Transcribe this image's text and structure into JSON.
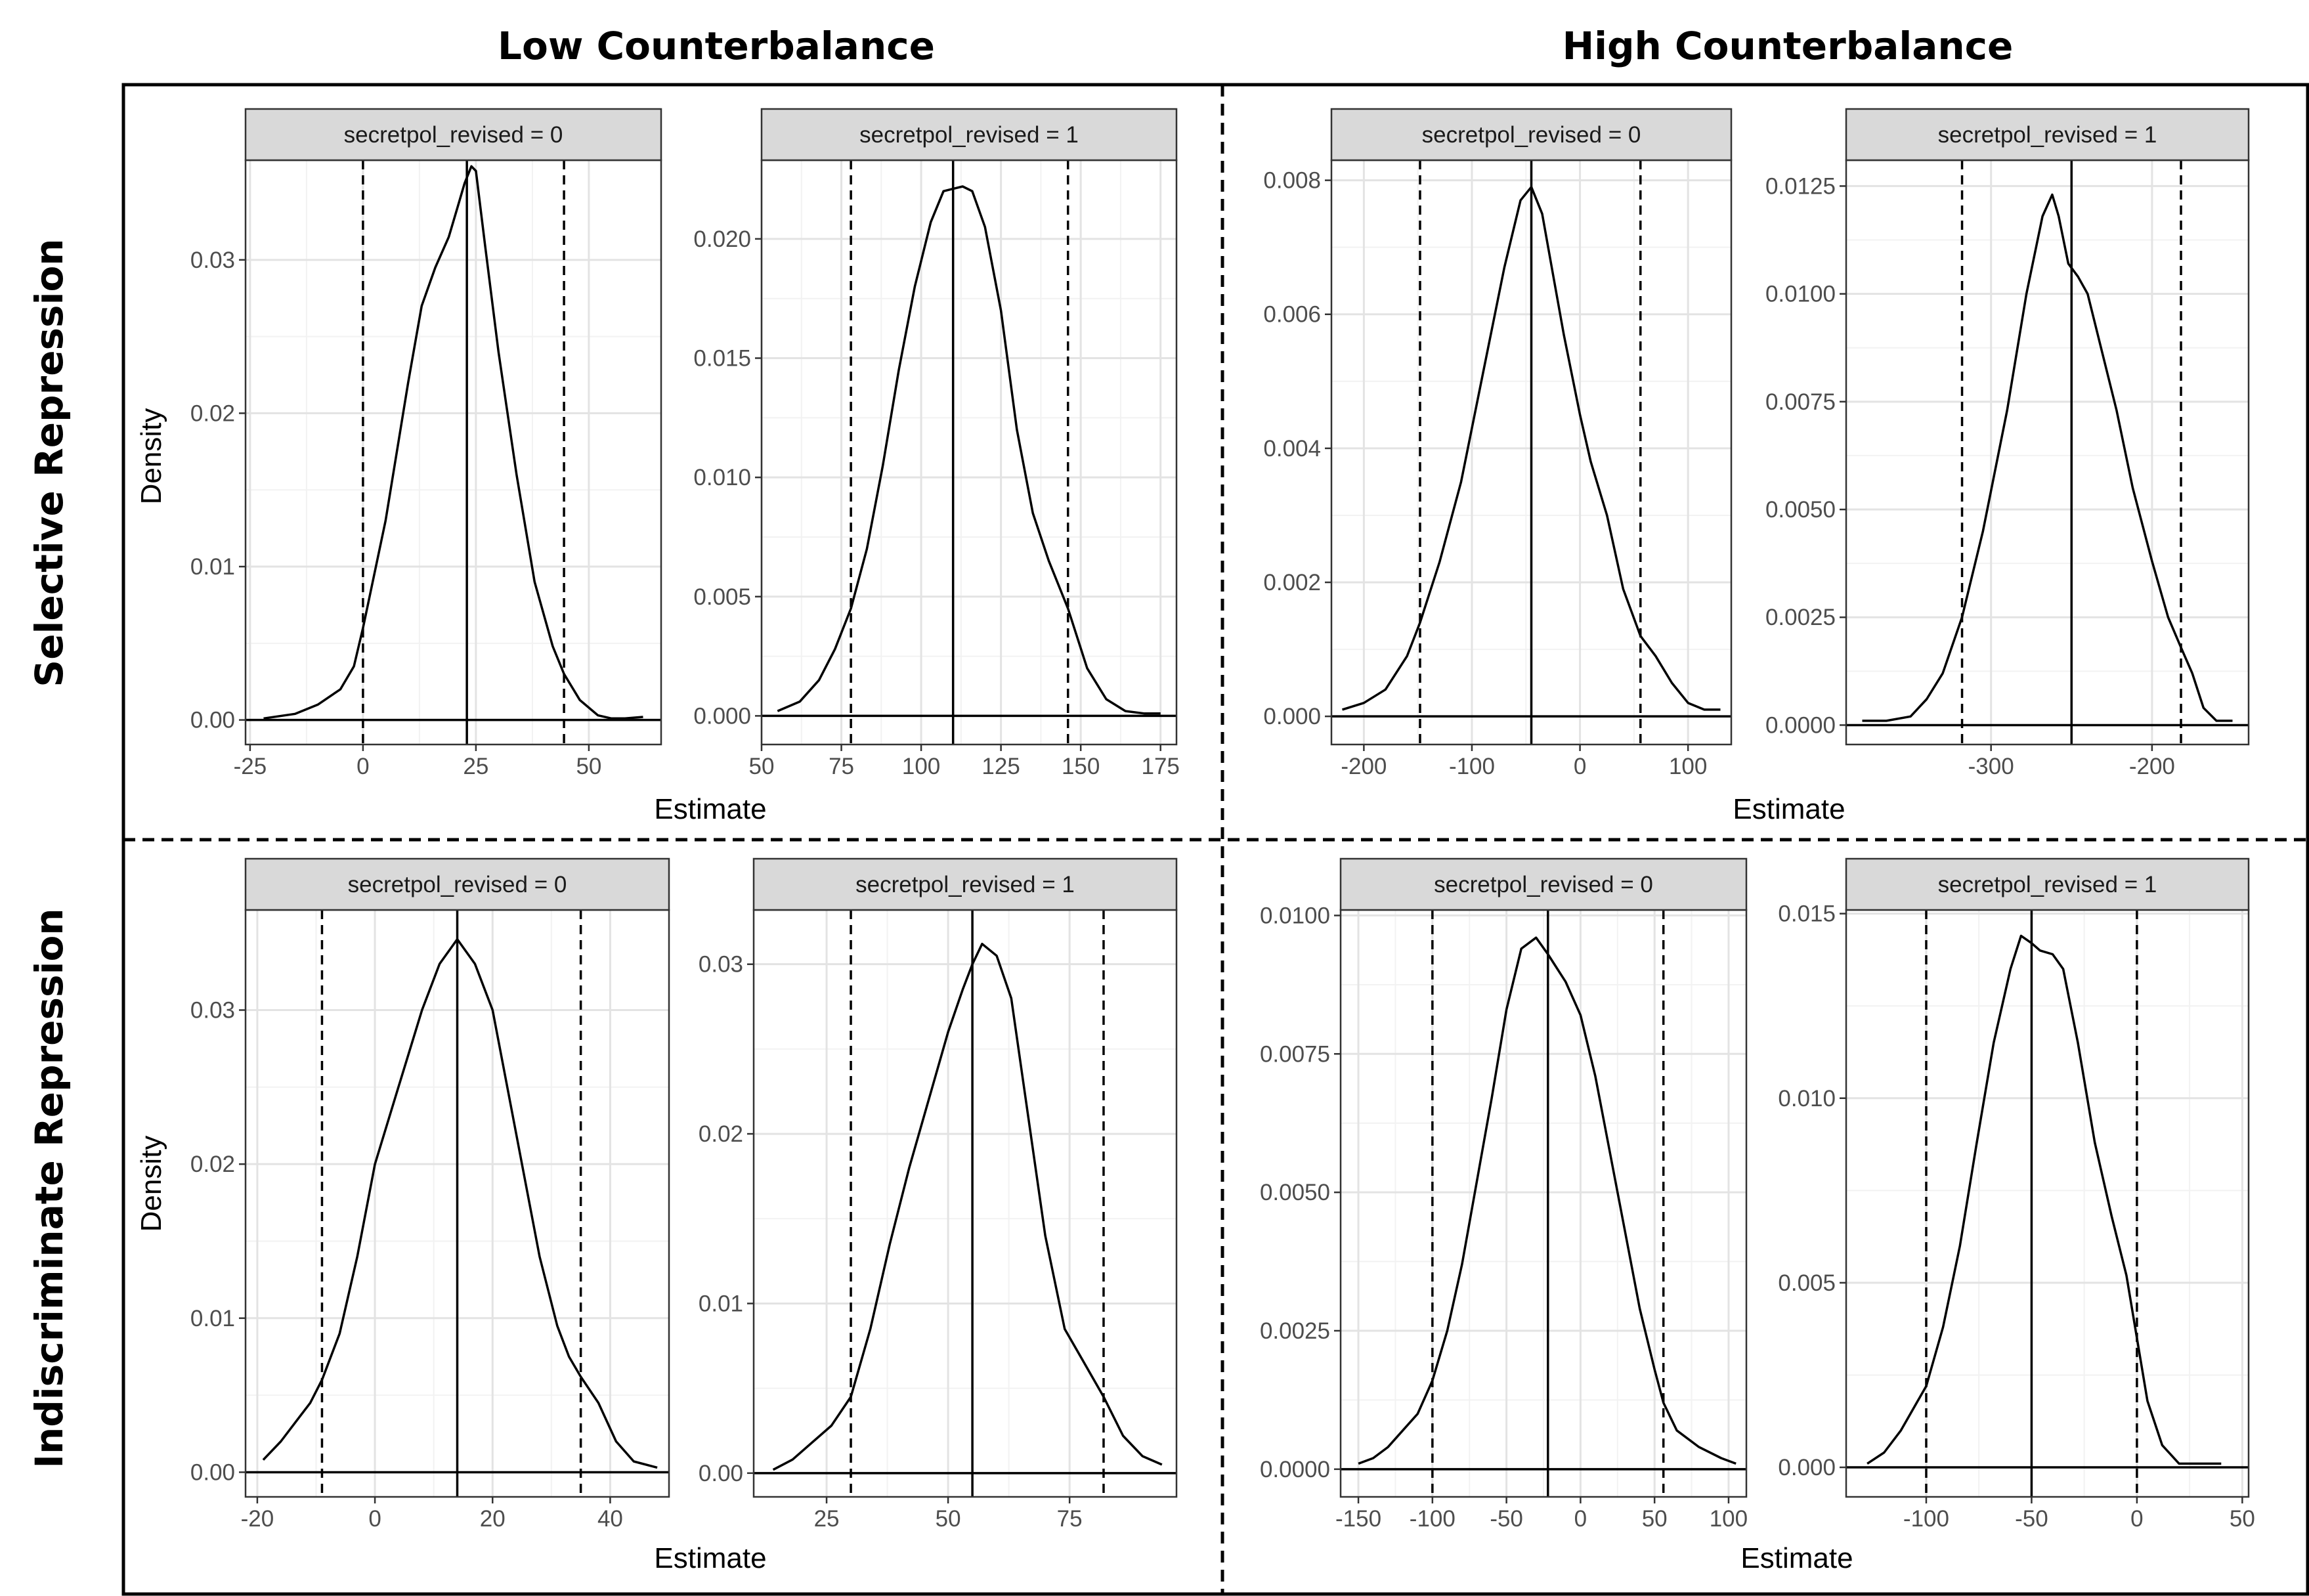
{
  "figure": {
    "col_titles": [
      "Low Counterbalance",
      "High Counterbalance"
    ],
    "row_titles": [
      "Selective Repression",
      "Indiscriminate Repression"
    ],
    "xlabel": "Estimate",
    "ylabel": "Density"
  },
  "chart_data": [
    {
      "type": "line",
      "strip": "secretpol_revised = 0",
      "xlabel": "Estimate",
      "ylabel": "Density",
      "xlim": [
        -26,
        66
      ],
      "ylim": [
        -0.0016,
        0.0365
      ],
      "xticks": [
        -25,
        0,
        25,
        50
      ],
      "xtick_labels": [
        "-25",
        "0",
        "25",
        "50"
      ],
      "yticks": [
        0,
        0.01,
        0.02,
        0.03
      ],
      "ytick_labels": [
        "0.00",
        "0.01",
        "0.02",
        "0.03"
      ],
      "mean": 23,
      "ci": [
        0,
        44.5
      ],
      "x": [
        -22,
        -15,
        -10,
        -5,
        -2,
        0,
        5,
        10,
        13,
        16,
        19,
        21,
        22.5,
        24,
        25,
        27,
        30,
        34,
        38,
        42,
        44.5,
        48,
        52,
        55,
        58,
        62
      ],
      "y": [
        0.0001,
        0.0004,
        0.001,
        0.002,
        0.0035,
        0.006,
        0.013,
        0.022,
        0.027,
        0.0295,
        0.0315,
        0.0335,
        0.035,
        0.0361,
        0.0358,
        0.031,
        0.024,
        0.016,
        0.009,
        0.0048,
        0.003,
        0.0013,
        0.0003,
        0.0001,
        0.0001,
        0.0002
      ]
    },
    {
      "type": "line",
      "strip": "secretpol_revised = 1",
      "xlabel": "Estimate",
      "ylabel": "",
      "xlim": [
        50,
        180
      ],
      "ylim": [
        -0.0012,
        0.0233
      ],
      "xticks": [
        50,
        75,
        100,
        125,
        150,
        175
      ],
      "xtick_labels": [
        "50",
        "75",
        "100",
        "125",
        "150",
        "175"
      ],
      "yticks": [
        0,
        0.005,
        0.01,
        0.015,
        0.02
      ],
      "ytick_labels": [
        "0.000",
        "0.005",
        "0.010",
        "0.015",
        "0.020"
      ],
      "mean": 110,
      "ci": [
        78,
        146
      ],
      "x": [
        55,
        62,
        68,
        73,
        78,
        83,
        88,
        93,
        98,
        103,
        107,
        110,
        113,
        116,
        120,
        125,
        130,
        135,
        140,
        146,
        152,
        158,
        164,
        170,
        175
      ],
      "y": [
        0.0002,
        0.0006,
        0.0015,
        0.0028,
        0.0045,
        0.007,
        0.0105,
        0.0145,
        0.018,
        0.0207,
        0.022,
        0.0221,
        0.0222,
        0.022,
        0.0205,
        0.017,
        0.012,
        0.0085,
        0.0065,
        0.0045,
        0.002,
        0.0007,
        0.0002,
        0.0001,
        0.0001
      ]
    },
    {
      "type": "line",
      "strip": "secretpol_revised = 0",
      "xlabel": "Estimate",
      "ylabel": "",
      "xlim": [
        -230,
        140
      ],
      "ylim": [
        -0.00042,
        0.0083
      ],
      "xticks": [
        -200,
        -100,
        0,
        100
      ],
      "xtick_labels": [
        "-200",
        "-100",
        "0",
        "100"
      ],
      "yticks": [
        0,
        0.002,
        0.004,
        0.006,
        0.008
      ],
      "ytick_labels": [
        "0.000",
        "0.002",
        "0.004",
        "0.006",
        "0.008"
      ],
      "mean": -45,
      "ci": [
        -148,
        56
      ],
      "x": [
        -220,
        -200,
        -180,
        -160,
        -148,
        -130,
        -110,
        -90,
        -70,
        -55,
        -45,
        -35,
        -25,
        -15,
        0,
        10,
        25,
        40,
        56,
        70,
        85,
        100,
        115,
        130
      ],
      "y": [
        0.0001,
        0.0002,
        0.0004,
        0.0009,
        0.0014,
        0.0023,
        0.0035,
        0.0051,
        0.0067,
        0.0077,
        0.0079,
        0.0075,
        0.0066,
        0.0057,
        0.0045,
        0.0038,
        0.003,
        0.0019,
        0.0012,
        0.0009,
        0.0005,
        0.0002,
        0.0001,
        0.0001
      ]
    },
    {
      "type": "line",
      "strip": "secretpol_revised = 1",
      "xlabel": "Estimate",
      "ylabel": "",
      "xlim": [
        -390,
        -140
      ],
      "ylim": [
        -0.00045,
        0.0131
      ],
      "xticks": [
        -300,
        -200
      ],
      "xtick_labels": [
        "-300",
        "-200"
      ],
      "yticks": [
        0,
        0.0025,
        0.005,
        0.0075,
        0.01,
        0.0125
      ],
      "ytick_labels": [
        "0.0000",
        "0.0025",
        "0.0050",
        "0.0075",
        "0.0100",
        "0.0125"
      ],
      "mean": -250,
      "ci": [
        -318,
        -182
      ],
      "x": [
        -380,
        -365,
        -350,
        -340,
        -330,
        -318,
        -305,
        -290,
        -278,
        -268,
        -262,
        -258,
        -252,
        -246,
        -240,
        -232,
        -222,
        -212,
        -200,
        -190,
        -182,
        -175,
        -168,
        -160,
        -150
      ],
      "y": [
        0.0001,
        0.0001,
        0.0002,
        0.0006,
        0.0012,
        0.0025,
        0.0045,
        0.0073,
        0.01,
        0.0118,
        0.0123,
        0.0118,
        0.0107,
        0.0104,
        0.01,
        0.0088,
        0.0073,
        0.0055,
        0.0038,
        0.0025,
        0.0018,
        0.0012,
        0.0004,
        0.0001,
        0.0001
      ]
    },
    {
      "type": "line",
      "strip": "secretpol_revised = 0",
      "xlabel": "Estimate",
      "ylabel": "Density",
      "xlim": [
        -22,
        50
      ],
      "ylim": [
        -0.0016,
        0.0365
      ],
      "xticks": [
        -20,
        0,
        20,
        40
      ],
      "xtick_labels": [
        "-20",
        "0",
        "20",
        "40"
      ],
      "yticks": [
        0,
        0.01,
        0.02,
        0.03
      ],
      "ytick_labels": [
        "0.00",
        "0.01",
        "0.02",
        "0.03"
      ],
      "mean": 14,
      "ci": [
        -9,
        35
      ],
      "x": [
        -19,
        -16,
        -13,
        -11,
        -9,
        -6,
        -3,
        0,
        4,
        8,
        11,
        14,
        17,
        20,
        24,
        28,
        31,
        33,
        35,
        38,
        41,
        44,
        48
      ],
      "y": [
        0.0008,
        0.002,
        0.0035,
        0.0045,
        0.006,
        0.009,
        0.014,
        0.02,
        0.025,
        0.03,
        0.033,
        0.0346,
        0.033,
        0.03,
        0.022,
        0.014,
        0.0095,
        0.0075,
        0.0062,
        0.0045,
        0.002,
        0.0007,
        0.0003
      ]
    },
    {
      "type": "line",
      "strip": "secretpol_revised = 1",
      "xlabel": "Estimate",
      "ylabel": "",
      "xlim": [
        10,
        97
      ],
      "ylim": [
        -0.0014,
        0.0332
      ],
      "xticks": [
        25,
        50,
        75
      ],
      "xtick_labels": [
        "25",
        "50",
        "75"
      ],
      "yticks": [
        0,
        0.01,
        0.02,
        0.03
      ],
      "ytick_labels": [
        "0.00",
        "0.01",
        "0.02",
        "0.03"
      ],
      "mean": 55,
      "ci": [
        30,
        82
      ],
      "x": [
        14,
        18,
        22,
        26,
        30,
        34,
        38,
        42,
        46,
        50,
        53,
        55,
        57,
        60,
        63,
        66,
        70,
        74,
        78,
        82,
        86,
        90,
        94
      ],
      "y": [
        0.0002,
        0.0008,
        0.0018,
        0.0028,
        0.0045,
        0.0085,
        0.0135,
        0.018,
        0.022,
        0.026,
        0.0285,
        0.03,
        0.0312,
        0.0305,
        0.028,
        0.022,
        0.014,
        0.0085,
        0.0065,
        0.0045,
        0.0022,
        0.001,
        0.0005
      ]
    },
    {
      "type": "line",
      "strip": "secretpol_revised = 0",
      "xlabel": "Estimate",
      "ylabel": "",
      "xlim": [
        -162,
        112
      ],
      "ylim": [
        -0.0005,
        0.0101
      ],
      "xticks": [
        -150,
        -100,
        -50,
        0,
        50,
        100
      ],
      "xtick_labels": [
        "-150",
        "-100",
        "-50",
        "0",
        "50",
        "100"
      ],
      "yticks": [
        0,
        0.0025,
        0.005,
        0.0075,
        0.01
      ],
      "ytick_labels": [
        "0.0000",
        "0.0025",
        "0.0050",
        "0.0075",
        "0.0100"
      ],
      "mean": -22,
      "ci": [
        -100,
        56
      ],
      "x": [
        -150,
        -140,
        -130,
        -120,
        -110,
        -100,
        -90,
        -80,
        -70,
        -60,
        -50,
        -40,
        -30,
        -22,
        -10,
        0,
        10,
        20,
        30,
        40,
        50,
        56,
        65,
        80,
        95,
        105
      ],
      "y": [
        0.0001,
        0.0002,
        0.0004,
        0.0007,
        0.001,
        0.0016,
        0.0025,
        0.0037,
        0.0052,
        0.0067,
        0.0083,
        0.0094,
        0.0096,
        0.0093,
        0.0088,
        0.0082,
        0.0071,
        0.0057,
        0.0043,
        0.0029,
        0.0018,
        0.0012,
        0.0007,
        0.0004,
        0.0002,
        0.0001
      ]
    },
    {
      "type": "line",
      "strip": "secretpol_revised = 1",
      "xlabel": "Estimate",
      "ylabel": "",
      "xlim": [
        -138,
        53
      ],
      "ylim": [
        -0.0008,
        0.0151
      ],
      "xticks": [
        -100,
        -50,
        0,
        50
      ],
      "xtick_labels": [
        "-100",
        "-50",
        "0",
        "50"
      ],
      "yticks": [
        0,
        0.005,
        0.01,
        0.015
      ],
      "ytick_labels": [
        "0.000",
        "0.005",
        "0.010",
        "0.015"
      ],
      "mean": -50,
      "ci": [
        -100,
        0
      ],
      "x": [
        -128,
        -120,
        -112,
        -104,
        -100,
        -92,
        -84,
        -76,
        -68,
        -60,
        -55,
        -50,
        -46,
        -40,
        -35,
        -28,
        -20,
        -12,
        -5,
        0,
        5,
        12,
        20,
        30,
        40
      ],
      "y": [
        0.0001,
        0.0004,
        0.001,
        0.0018,
        0.0022,
        0.0038,
        0.006,
        0.0088,
        0.0115,
        0.0135,
        0.0144,
        0.0142,
        0.014,
        0.0139,
        0.0135,
        0.0115,
        0.0088,
        0.0068,
        0.0052,
        0.0035,
        0.0018,
        0.0006,
        0.0001,
        0.0001,
        0.0001
      ]
    }
  ]
}
